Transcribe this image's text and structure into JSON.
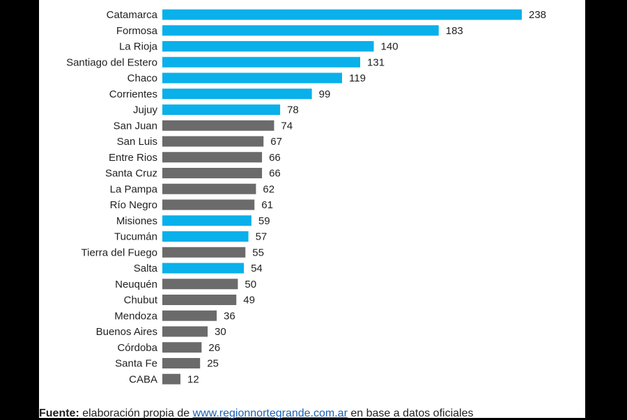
{
  "colors": {
    "highlight": "#0ab0ea",
    "default": "#6b6b6b"
  },
  "chart_data": {
    "type": "bar",
    "orientation": "horizontal",
    "categories": [
      "Catamarca",
      "Formosa",
      "La Rioja",
      "Santiago del Estero",
      "Chaco",
      "Corrientes",
      "Jujuy",
      "San Juan",
      "San Luis",
      "Entre Rios",
      "Santa Cruz",
      "La Pampa",
      "Río Negro",
      "Misiones",
      "Tucumán",
      "Tierra del Fuego",
      "Salta",
      "Neuquén",
      "Chubut",
      "Mendoza",
      "Buenos Aires",
      "Córdoba",
      "Santa Fe",
      "CABA"
    ],
    "values": [
      238,
      183,
      140,
      131,
      119,
      99,
      78,
      74,
      67,
      66,
      66,
      62,
      61,
      59,
      57,
      55,
      54,
      50,
      49,
      36,
      30,
      26,
      25,
      12
    ],
    "highlighted": [
      true,
      true,
      true,
      true,
      true,
      true,
      true,
      false,
      false,
      false,
      false,
      false,
      false,
      true,
      true,
      false,
      true,
      false,
      false,
      false,
      false,
      false,
      false,
      false
    ],
    "xlim": [
      0,
      238
    ]
  },
  "footer": {
    "source_label": "Fuente:",
    "text_before_link": " elaboración propia de ",
    "link_text": "www.regionnortegrande.com.ar",
    "text_after_link": " en base a datos oficiales"
  }
}
